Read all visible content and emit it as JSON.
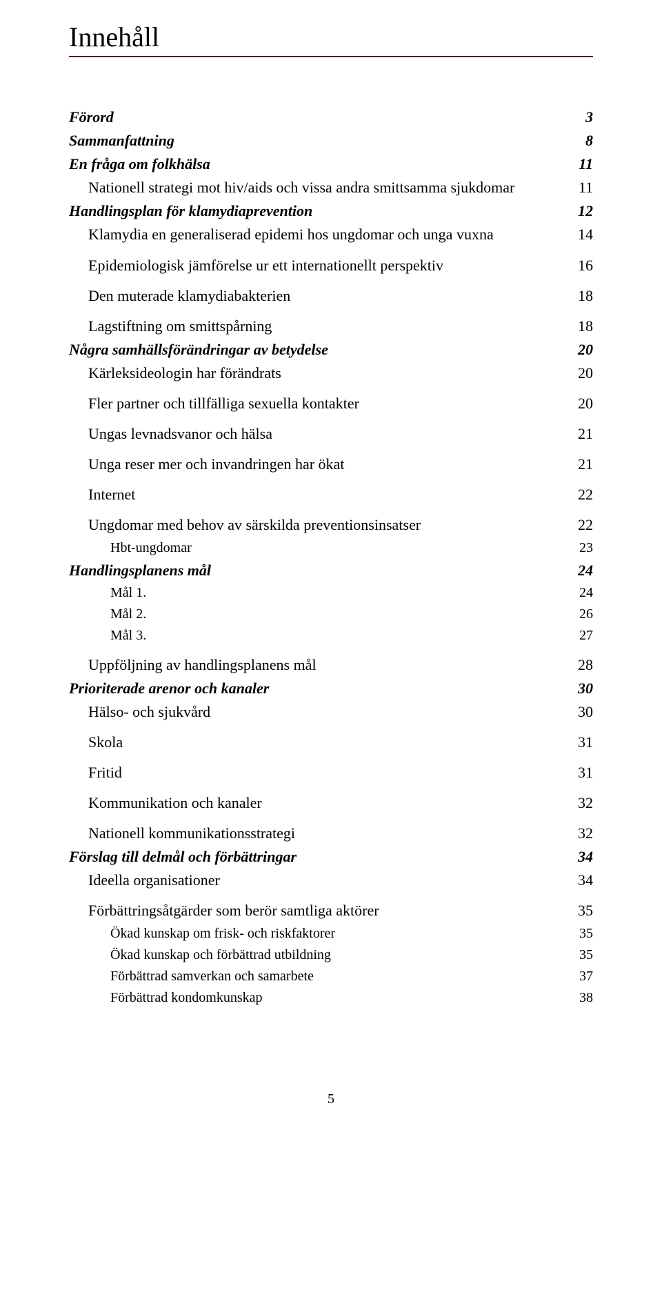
{
  "heading": "Innehåll",
  "underline_color": "#591824",
  "page_footer": "5",
  "toc": [
    {
      "label": "Förord",
      "page": "3",
      "level": 0,
      "italic": true,
      "bold": true,
      "size": "sec"
    },
    {
      "label": "Sammanfattning",
      "page": "8",
      "level": 0,
      "italic": true,
      "bold": true,
      "size": "sec"
    },
    {
      "label": "En fråga om folkhälsa",
      "page": "11",
      "level": 0,
      "italic": true,
      "bold": true,
      "size": "sec"
    },
    {
      "label": "Nationell strategi mot hiv/aids och vissa andra smittsamma sjukdomar",
      "page": "11",
      "level": 1,
      "italic": false,
      "bold": false,
      "size": "sub"
    },
    {
      "label": "Handlingsplan för klamydiaprevention",
      "page": "12",
      "level": 0,
      "italic": true,
      "bold": true,
      "size": "sec"
    },
    {
      "label": "Klamydia en generaliserad epidemi hos ungdomar och unga vuxna",
      "page": "14",
      "level": 1,
      "italic": false,
      "bold": false,
      "size": "sub"
    },
    {
      "label": "Epidemiologisk jämförelse ur ett internationellt perspektiv",
      "page": "16",
      "level": 1,
      "italic": false,
      "bold": false,
      "size": "sub"
    },
    {
      "label": "Den muterade klamydiabakterien",
      "page": "18",
      "level": 1,
      "italic": false,
      "bold": false,
      "size": "sub"
    },
    {
      "label": "Lagstiftning om smittspårning",
      "page": "18",
      "level": 1,
      "italic": false,
      "bold": false,
      "size": "sub"
    },
    {
      "label": "Några samhällsförändringar av betydelse",
      "page": "20",
      "level": 0,
      "italic": true,
      "bold": true,
      "size": "sec"
    },
    {
      "label": "Kärleksideologin har förändrats",
      "page": "20",
      "level": 1,
      "italic": false,
      "bold": false,
      "size": "sub"
    },
    {
      "label": "Fler partner och tillfälliga sexuella kontakter",
      "page": "20",
      "level": 1,
      "italic": false,
      "bold": false,
      "size": "sub"
    },
    {
      "label": "Ungas levnadsvanor och hälsa",
      "page": "21",
      "level": 1,
      "italic": false,
      "bold": false,
      "size": "sub"
    },
    {
      "label": "Unga reser mer och invandringen har ökat",
      "page": "21",
      "level": 1,
      "italic": false,
      "bold": false,
      "size": "sub"
    },
    {
      "label": "Internet",
      "page": "22",
      "level": 1,
      "italic": false,
      "bold": false,
      "size": "sub"
    },
    {
      "label": "Ungdomar med behov av särskilda preventionsinsatser",
      "page": "22",
      "level": 1,
      "italic": false,
      "bold": false,
      "size": "sub"
    },
    {
      "label": "Hbt-ungdomar",
      "page": "23",
      "level": 2,
      "italic": false,
      "bold": false,
      "size": "tiny"
    },
    {
      "label": "Handlingsplanens mål",
      "page": "24",
      "level": 0,
      "italic": true,
      "bold": true,
      "size": "sec"
    },
    {
      "label": "Mål 1.",
      "page": "24",
      "level": 2,
      "italic": false,
      "bold": false,
      "size": "tiny"
    },
    {
      "label": "Mål 2.",
      "page": "26",
      "level": 2,
      "italic": false,
      "bold": false,
      "size": "tiny"
    },
    {
      "label": "Mål 3.",
      "page": "27",
      "level": 2,
      "italic": false,
      "bold": false,
      "size": "tiny"
    },
    {
      "label": "Uppföljning av handlingsplanens mål",
      "page": "28",
      "level": 1,
      "italic": false,
      "bold": false,
      "size": "sub"
    },
    {
      "label": "Prioriterade arenor och kanaler",
      "page": "30",
      "level": 0,
      "italic": true,
      "bold": true,
      "size": "sec"
    },
    {
      "label": "Hälso- och sjukvård",
      "page": "30",
      "level": 1,
      "italic": false,
      "bold": false,
      "size": "sub"
    },
    {
      "label": "Skola",
      "page": "31",
      "level": 1,
      "italic": false,
      "bold": false,
      "size": "sub"
    },
    {
      "label": "Fritid",
      "page": "31",
      "level": 1,
      "italic": false,
      "bold": false,
      "size": "sub"
    },
    {
      "label": "Kommunikation och kanaler",
      "page": "32",
      "level": 1,
      "italic": false,
      "bold": false,
      "size": "sub"
    },
    {
      "label": "Nationell kommunikationsstrategi",
      "page": "32",
      "level": 1,
      "italic": false,
      "bold": false,
      "size": "sub"
    },
    {
      "label": "Förslag till delmål och förbättringar",
      "page": "34",
      "level": 0,
      "italic": true,
      "bold": true,
      "size": "sec"
    },
    {
      "label": "Ideella organisationer",
      "page": "34",
      "level": 1,
      "italic": false,
      "bold": false,
      "size": "sub"
    },
    {
      "label": "Förbättringsåtgärder som berör samtliga aktörer",
      "page": "35",
      "level": 1,
      "italic": false,
      "bold": false,
      "size": "sub"
    },
    {
      "label": "Ökad kunskap om frisk- och riskfaktorer",
      "page": "35",
      "level": 2,
      "italic": false,
      "bold": false,
      "size": "tiny"
    },
    {
      "label": "Ökad kunskap och förbättrad utbildning",
      "page": "35",
      "level": 2,
      "italic": false,
      "bold": false,
      "size": "tiny"
    },
    {
      "label": "Förbättrad samverkan och samarbete",
      "page": "37",
      "level": 2,
      "italic": false,
      "bold": false,
      "size": "tiny"
    },
    {
      "label": "Förbättrad kondomkunskap",
      "page": "38",
      "level": 2,
      "italic": false,
      "bold": false,
      "size": "tiny"
    }
  ]
}
